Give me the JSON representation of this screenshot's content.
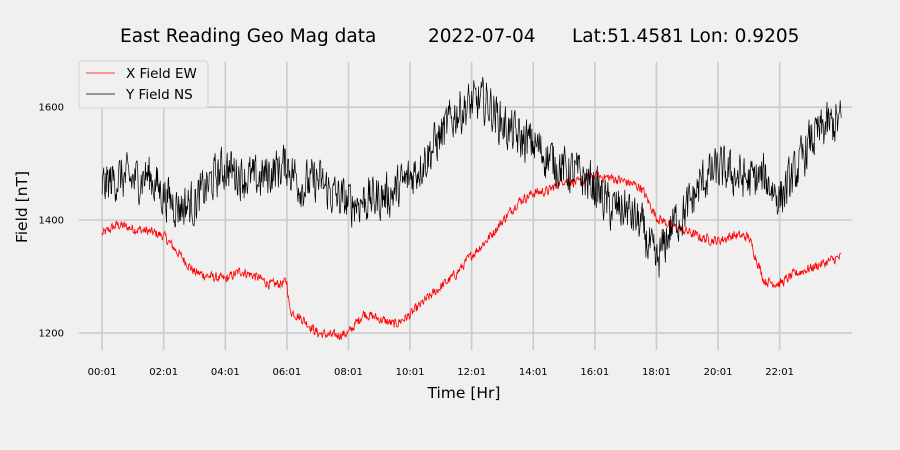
{
  "chart_data": {
    "type": "line",
    "title": "East Reading Geo Mag data",
    "date": "2022-07-04",
    "location": "Lat:51.4581  Lon: 0.9205",
    "xlabel": "Time  [Hr]",
    "ylabel": "Field  [nT]",
    "x_ticks": [
      "00:01",
      "02:01",
      "04:01",
      "06:01",
      "08:01",
      "10:01",
      "12:01",
      "14:01",
      "16:01",
      "18:01",
      "20:01",
      "22:01"
    ],
    "y_ticks": [
      1200,
      1400,
      1600
    ],
    "xlim": [
      -0.75,
      24.35
    ],
    "ylim": [
      1170,
      1680
    ],
    "grid": true,
    "legend_position": "upper-left",
    "series": [
      {
        "name": "X Field EW",
        "color": "#ff0000",
        "noise": 10,
        "x": [
          0.0,
          0.5,
          1.0,
          1.5,
          2.0,
          2.5,
          3.0,
          3.5,
          4.0,
          4.5,
          5.0,
          5.5,
          6.0,
          6.1,
          6.5,
          7.0,
          7.5,
          8.0,
          8.5,
          9.0,
          9.5,
          10.0,
          10.5,
          11.0,
          11.5,
          12.0,
          12.5,
          13.0,
          13.5,
          14.0,
          14.5,
          15.0,
          15.5,
          16.0,
          16.5,
          17.0,
          17.5,
          18.0,
          18.5,
          19.0,
          19.5,
          20.0,
          20.5,
          21.0,
          21.5,
          22.0,
          22.5,
          23.0,
          23.5,
          24.0
        ],
        "y": [
          1375,
          1392,
          1385,
          1380,
          1372,
          1340,
          1308,
          1300,
          1295,
          1310,
          1300,
          1285,
          1290,
          1240,
          1225,
          1200,
          1195,
          1200,
          1235,
          1225,
          1215,
          1232,
          1258,
          1282,
          1305,
          1338,
          1365,
          1398,
          1432,
          1448,
          1452,
          1472,
          1465,
          1478,
          1475,
          1468,
          1458,
          1405,
          1390,
          1380,
          1368,
          1363,
          1373,
          1370,
          1292,
          1287,
          1305,
          1315,
          1325,
          1335
        ]
      },
      {
        "name": "Y Field NS",
        "color": "#000000",
        "noise": 45,
        "x": [
          0.0,
          0.5,
          1.0,
          1.5,
          2.0,
          2.5,
          3.0,
          3.5,
          4.0,
          4.5,
          5.0,
          5.5,
          6.0,
          6.5,
          7.0,
          7.5,
          8.0,
          8.5,
          9.0,
          9.5,
          10.0,
          10.5,
          11.0,
          11.5,
          12.0,
          12.5,
          13.0,
          13.5,
          14.0,
          14.5,
          15.0,
          15.5,
          16.0,
          16.5,
          17.0,
          17.5,
          18.0,
          18.5,
          19.0,
          19.5,
          20.0,
          20.5,
          21.0,
          21.5,
          22.0,
          22.5,
          23.0,
          23.5,
          24.0
        ],
        "y": [
          1460,
          1475,
          1470,
          1480,
          1445,
          1425,
          1430,
          1465,
          1495,
          1480,
          1470,
          1485,
          1500,
          1460,
          1470,
          1445,
          1430,
          1435,
          1440,
          1450,
          1475,
          1510,
          1550,
          1590,
          1605,
          1610,
          1570,
          1545,
          1535,
          1510,
          1490,
          1480,
          1460,
          1420,
          1420,
          1390,
          1320,
          1390,
          1420,
          1470,
          1490,
          1480,
          1470,
          1475,
          1440,
          1480,
          1540,
          1565,
          1575
        ]
      }
    ]
  }
}
